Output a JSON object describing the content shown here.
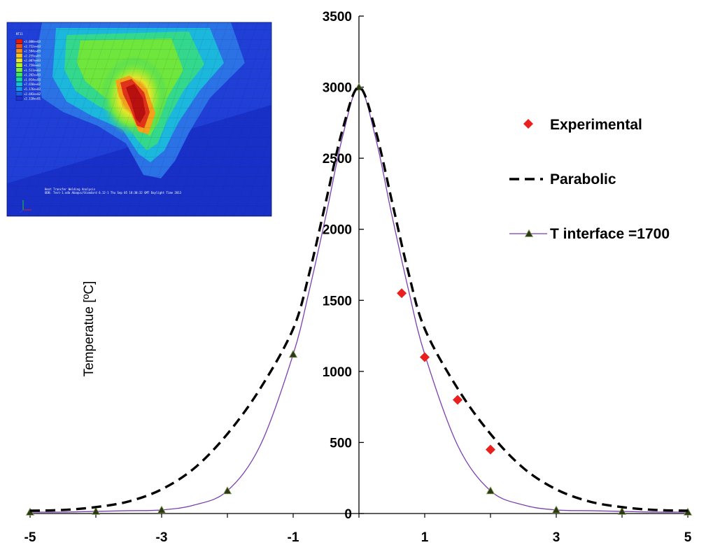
{
  "chart_data": {
    "type": "line",
    "title": "",
    "xlabel": "",
    "ylabel": "Temperatue [ºC]",
    "xlim": [
      -5,
      5
    ],
    "ylim": [
      0,
      3500
    ],
    "x_ticks": [
      "-5",
      "-3",
      "-1",
      "1",
      "3",
      "5"
    ],
    "x_tick_values": [
      -5,
      -3,
      -1,
      1,
      3,
      5
    ],
    "y_ticks": [
      "0",
      "500",
      "1000",
      "1500",
      "2000",
      "2500",
      "3000",
      "3500"
    ],
    "y_tick_values": [
      0,
      500,
      1000,
      1500,
      2000,
      2500,
      3000,
      3500
    ],
    "grid": false,
    "legend_position": "right",
    "series": [
      {
        "name": "Experimental",
        "style": "markers",
        "marker": "diamond",
        "color": "#e8201e",
        "points": [
          [
            0.65,
            1550
          ],
          [
            1.0,
            1100
          ],
          [
            1.5,
            800
          ],
          [
            2.0,
            450
          ]
        ]
      },
      {
        "name": "Parabolic",
        "style": "dashed",
        "color": "#000000",
        "points": [
          [
            -5,
            20
          ],
          [
            -4.5,
            25
          ],
          [
            -4,
            45
          ],
          [
            -3.5,
            85
          ],
          [
            -3,
            170
          ],
          [
            -2.5,
            320
          ],
          [
            -2,
            560
          ],
          [
            -1.5,
            880
          ],
          [
            -1,
            1300
          ],
          [
            -0.75,
            1700
          ],
          [
            -0.5,
            2200
          ],
          [
            -0.25,
            2700
          ],
          [
            0,
            3000
          ],
          [
            0.25,
            2700
          ],
          [
            0.5,
            2200
          ],
          [
            0.75,
            1700
          ],
          [
            1,
            1300
          ],
          [
            1.5,
            880
          ],
          [
            2,
            560
          ],
          [
            2.5,
            320
          ],
          [
            3,
            170
          ],
          [
            3.5,
            85
          ],
          [
            4,
            45
          ],
          [
            4.5,
            25
          ],
          [
            5,
            20
          ]
        ]
      },
      {
        "name": "T interface =1700",
        "style": "line-triangle",
        "color": "#7b3fae",
        "marker_color": "#2a3a12",
        "points": [
          [
            -5,
            10
          ],
          [
            -4.5,
            10
          ],
          [
            -4,
            15
          ],
          [
            -3.5,
            20
          ],
          [
            -3,
            25
          ],
          [
            -2.5,
            60
          ],
          [
            -2,
            160
          ],
          [
            -1.5,
            480
          ],
          [
            -1,
            1120
          ],
          [
            -0.75,
            1580
          ],
          [
            -0.5,
            2100
          ],
          [
            -0.25,
            2650
          ],
          [
            0,
            3000
          ],
          [
            0.25,
            2650
          ],
          [
            0.5,
            2100
          ],
          [
            0.75,
            1580
          ],
          [
            1,
            1120
          ],
          [
            1.5,
            480
          ],
          [
            2,
            160
          ],
          [
            2.5,
            60
          ],
          [
            3,
            25
          ],
          [
            3.5,
            20
          ],
          [
            4,
            15
          ],
          [
            4.5,
            10
          ],
          [
            5,
            10
          ]
        ],
        "marker_points": [
          [
            -5,
            10
          ],
          [
            -4,
            15
          ],
          [
            -3,
            25
          ],
          [
            -2,
            160
          ],
          [
            -1,
            1120
          ],
          [
            0,
            3000
          ],
          [
            2,
            160
          ],
          [
            3,
            25
          ],
          [
            4,
            15
          ],
          [
            5,
            10
          ]
        ]
      }
    ]
  },
  "inset": {
    "legend_title": "NT11",
    "legend_values": [
      "+3.000e+03",
      "+2.752e+03",
      "+2.504e+03",
      "+2.255e+03",
      "+2.007e+03",
      "+1.759e+03",
      "+1.511e+03",
      "+1.262e+03",
      "+1.014e+03",
      "+7.658e+02",
      "+5.176e+02",
      "+2.693e+02",
      "+2.110e+01"
    ],
    "legend_colors": [
      "#e31a0c",
      "#f25512",
      "#f7901a",
      "#fbc421",
      "#ecea26",
      "#b8f02c",
      "#7ef23a",
      "#3fe860",
      "#19d89c",
      "#16c4d6",
      "#1696ee",
      "#1a5fe8",
      "#1c2fd4"
    ],
    "footer_line1": "Heat Transfer Welding Analysis",
    "footer_line2": "ODB: Test-1.odb    Abaqus/Standard 6.12-1    Thu Sep 05 18:30:32 GMT Daylight Time 2013"
  }
}
